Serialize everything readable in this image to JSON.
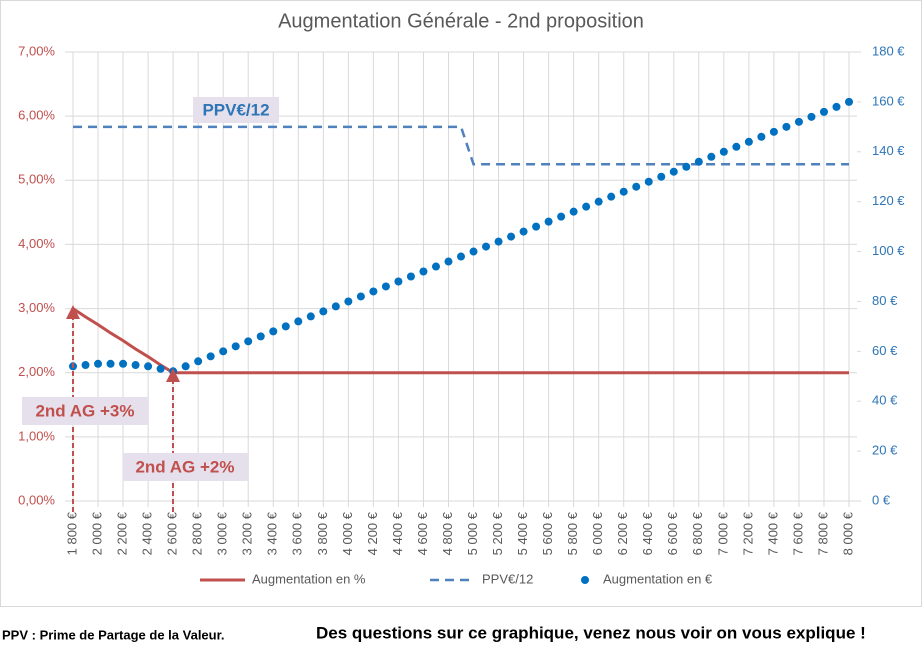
{
  "chart_data": {
    "type": "line",
    "title": "Augmentation Générale - 2nd proposition",
    "x": [
      1800,
      1900,
      2000,
      2100,
      2200,
      2300,
      2400,
      2500,
      2600,
      2700,
      2800,
      2900,
      3000,
      3100,
      3200,
      3300,
      3400,
      3500,
      3600,
      3700,
      3800,
      3900,
      4000,
      4100,
      4200,
      4300,
      4400,
      4500,
      4600,
      4700,
      4800,
      4900,
      5000,
      5100,
      5200,
      5300,
      5400,
      5500,
      5600,
      5700,
      5800,
      5900,
      6000,
      6100,
      6200,
      6300,
      6400,
      6500,
      6600,
      6700,
      6800,
      6900,
      7000,
      7100,
      7200,
      7300,
      7400,
      7500,
      7600,
      7700,
      7800,
      7900,
      8000
    ],
    "xlim": [
      1800,
      8000
    ],
    "xticks": [
      {
        "value": 1800,
        "label": "1 800 €"
      },
      {
        "value": 2000,
        "label": "2 000 €"
      },
      {
        "value": 2200,
        "label": "2 200 €"
      },
      {
        "value": 2400,
        "label": "2 400 €"
      },
      {
        "value": 2600,
        "label": "2 600 €"
      },
      {
        "value": 2800,
        "label": "2 800 €"
      },
      {
        "value": 3000,
        "label": "3 000 €"
      },
      {
        "value": 3200,
        "label": "3 200 €"
      },
      {
        "value": 3400,
        "label": "3 400 €"
      },
      {
        "value": 3600,
        "label": "3 600 €"
      },
      {
        "value": 3800,
        "label": "3 800 €"
      },
      {
        "value": 4000,
        "label": "4 000 €"
      },
      {
        "value": 4200,
        "label": "4 200 €"
      },
      {
        "value": 4400,
        "label": "4 400 €"
      },
      {
        "value": 4600,
        "label": "4 600 €"
      },
      {
        "value": 4800,
        "label": "4 800 €"
      },
      {
        "value": 5000,
        "label": "5 000 €"
      },
      {
        "value": 5200,
        "label": "5 200 €"
      },
      {
        "value": 5400,
        "label": "5 400 €"
      },
      {
        "value": 5600,
        "label": "5 600 €"
      },
      {
        "value": 5800,
        "label": "5 800 €"
      },
      {
        "value": 6000,
        "label": "6 000 €"
      },
      {
        "value": 6200,
        "label": "6 200 €"
      },
      {
        "value": 6400,
        "label": "6 400 €"
      },
      {
        "value": 6600,
        "label": "6 600 €"
      },
      {
        "value": 6800,
        "label": "6 800 €"
      },
      {
        "value": 7000,
        "label": "7 000 €"
      },
      {
        "value": 7200,
        "label": "7 200 €"
      },
      {
        "value": 7400,
        "label": "7 400 €"
      },
      {
        "value": 7600,
        "label": "7 600 €"
      },
      {
        "value": 7800,
        "label": "7 800 €"
      },
      {
        "value": 8000,
        "label": "8 000 €"
      }
    ],
    "ylim": [
      0,
      7
    ],
    "yticks": [
      {
        "value": 0,
        "label": "0,00%"
      },
      {
        "value": 1,
        "label": "1,00%"
      },
      {
        "value": 2,
        "label": "2,00%"
      },
      {
        "value": 3,
        "label": "3,00%"
      },
      {
        "value": 4,
        "label": "4,00%"
      },
      {
        "value": 5,
        "label": "5,00%"
      },
      {
        "value": 6,
        "label": "6,00%"
      },
      {
        "value": 7,
        "label": "7,00%"
      }
    ],
    "y2lim": [
      0,
      180
    ],
    "y2ticks": [
      {
        "value": 0,
        "label": "0 €"
      },
      {
        "value": 20,
        "label": "20 €"
      },
      {
        "value": 40,
        "label": "40 €"
      },
      {
        "value": 60,
        "label": "60 €"
      },
      {
        "value": 80,
        "label": "80 €"
      },
      {
        "value": 100,
        "label": "100 €"
      },
      {
        "value": 120,
        "label": "120 €"
      },
      {
        "value": 140,
        "label": "140 €"
      },
      {
        "value": 160,
        "label": "160 €"
      },
      {
        "value": 180,
        "label": "180 €"
      }
    ],
    "grid": true,
    "series": [
      {
        "name": "Augmentation en %",
        "color": "#c0504d",
        "style": "line",
        "values": [
          3,
          2.87,
          2.75,
          2.62,
          2.5,
          2.37,
          2.25,
          2.12,
          2,
          2,
          2,
          2,
          2,
          2,
          2,
          2,
          2,
          2,
          2,
          2,
          2,
          2,
          2,
          2,
          2,
          2,
          2,
          2,
          2,
          2,
          2,
          2,
          2,
          2,
          2,
          2,
          2,
          2,
          2,
          2,
          2,
          2,
          2,
          2,
          2,
          2,
          2,
          2,
          2,
          2,
          2,
          2,
          2,
          2,
          2,
          2,
          2,
          2,
          2,
          2,
          2,
          2,
          2
        ]
      },
      {
        "name": "PPV€/12",
        "color": "#4f81bd",
        "style": "dashed",
        "axis": "y2",
        "values": [
          150,
          150,
          150,
          150,
          150,
          150,
          150,
          150,
          150,
          150,
          150,
          150,
          150,
          150,
          150,
          150,
          150,
          150,
          150,
          150,
          150,
          150,
          150,
          150,
          150,
          150,
          150,
          150,
          150,
          150,
          150,
          150,
          135,
          135,
          135,
          135,
          135,
          135,
          135,
          135,
          135,
          135,
          135,
          135,
          135,
          135,
          135,
          135,
          135,
          135,
          135,
          135,
          135,
          135,
          135,
          135,
          135,
          135,
          135,
          135,
          135,
          135,
          135
        ]
      },
      {
        "name": "Augmentation en €",
        "color": "#0070c0",
        "style": "dots",
        "axis": "y2",
        "values": [
          54,
          54.5,
          55,
          55,
          55,
          54.5,
          54,
          53,
          52,
          54,
          56,
          58,
          60,
          62,
          64,
          66,
          68,
          70,
          72,
          74,
          76,
          78,
          80,
          82,
          84,
          86,
          88,
          90,
          92,
          94,
          96,
          98,
          100,
          102,
          104,
          106,
          108,
          110,
          112,
          114,
          116,
          118,
          120,
          122,
          124,
          126,
          128,
          130,
          132,
          134,
          136,
          138,
          140,
          142,
          144,
          146,
          148,
          150,
          152,
          154,
          156,
          158,
          160
        ]
      }
    ],
    "annotations": [
      "PPV€/12",
      "2nd AG +3%",
      "2nd AG +2%"
    ]
  },
  "footer": {
    "note": "PPV : Prime de Partage de la Valeur.",
    "cta": "Des questions sur ce graphique, venez nous voir on vous explique !"
  }
}
